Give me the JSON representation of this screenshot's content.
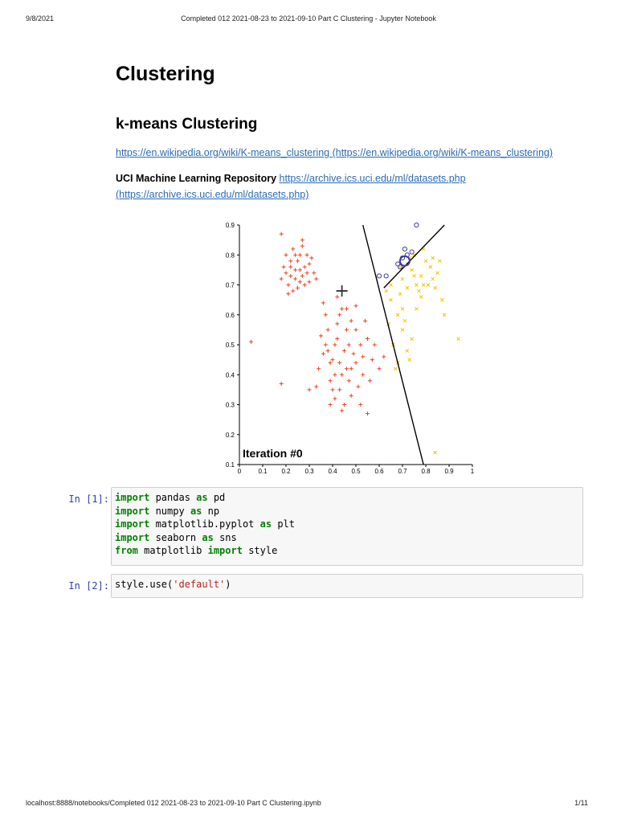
{
  "print_header": {
    "date": "9/8/2021",
    "title": "Completed 012 2021-08-23 to 2021-09-10 Part C Clustering - Jupyter Notebook"
  },
  "print_footer": {
    "url": "localhost:8888/notebooks/Completed 012 2021-08-23 to 2021-09-10 Part C Clustering.ipynb",
    "page": "1/11"
  },
  "markdown": {
    "title": "Clustering",
    "subtitle": "k-means Clustering",
    "wiki_link_text": "https://en.wikipedia.org/wiki/K-means_clustering",
    "wiki_link_paren": "(https://en.wikipedia.org/wiki/K-means_clustering)",
    "uci_label": "UCI Machine Learning Repository",
    "uci_link_text": "https://archive.ics.uci.edu/ml/datasets.php",
    "uci_link_paren": "(https://archive.ics.uci.edu/ml/datasets.php)"
  },
  "chart_data": {
    "type": "scatter",
    "annotation": "Iteration #0",
    "xlim": [
      0,
      1
    ],
    "ylim": [
      0.1,
      0.9
    ],
    "x_ticks": [
      "0",
      "0.1",
      "0.2",
      "0.3",
      "0.4",
      "0.5",
      "0.6",
      "0.7",
      "0.8",
      "0.9",
      "1"
    ],
    "y_ticks": [
      "0.1",
      "0.2",
      "0.3",
      "0.4",
      "0.5",
      "0.6",
      "0.7",
      "0.8",
      "0.9"
    ],
    "grid": false,
    "cluster_colors": {
      "orange": "#e8451f",
      "yellow": "#f2c400",
      "blue": "#3b3e9e"
    },
    "centroids": [
      {
        "cluster": "orange",
        "x": 0.44,
        "y": 0.68
      },
      {
        "cluster": "blue",
        "x": 0.71,
        "y": 0.78
      }
    ],
    "boundaries": [
      {
        "from": [
          0.53,
          0.9
        ],
        "to": [
          0.79,
          0.1
        ]
      },
      {
        "from": [
          0.62,
          0.69
        ],
        "to": [
          0.88,
          0.9
        ]
      }
    ],
    "series": [
      {
        "marker": "+",
        "color": "#e8451f",
        "points": [
          [
            0.2,
            0.74
          ],
          [
            0.22,
            0.78
          ],
          [
            0.24,
            0.72
          ],
          [
            0.26,
            0.8
          ],
          [
            0.28,
            0.76
          ],
          [
            0.25,
            0.69
          ],
          [
            0.21,
            0.7
          ],
          [
            0.23,
            0.82
          ],
          [
            0.27,
            0.73
          ],
          [
            0.3,
            0.77
          ],
          [
            0.19,
            0.76
          ],
          [
            0.24,
            0.75
          ],
          [
            0.26,
            0.71
          ],
          [
            0.22,
            0.73
          ],
          [
            0.29,
            0.8
          ],
          [
            0.32,
            0.74
          ],
          [
            0.2,
            0.8
          ],
          [
            0.25,
            0.78
          ],
          [
            0.28,
            0.7
          ],
          [
            0.23,
            0.68
          ],
          [
            0.18,
            0.72
          ],
          [
            0.31,
            0.79
          ],
          [
            0.27,
            0.83
          ],
          [
            0.21,
            0.67
          ],
          [
            0.33,
            0.72
          ],
          [
            0.26,
            0.75
          ],
          [
            0.24,
            0.8
          ],
          [
            0.29,
            0.74
          ],
          [
            0.22,
            0.76
          ],
          [
            0.3,
            0.71
          ],
          [
            0.18,
            0.87
          ],
          [
            0.27,
            0.85
          ],
          [
            0.05,
            0.51
          ],
          [
            0.18,
            0.37
          ],
          [
            0.4,
            0.45
          ],
          [
            0.42,
            0.52
          ],
          [
            0.45,
            0.48
          ],
          [
            0.38,
            0.55
          ],
          [
            0.48,
            0.58
          ],
          [
            0.44,
            0.62
          ],
          [
            0.41,
            0.4
          ],
          [
            0.36,
            0.47
          ],
          [
            0.5,
            0.44
          ],
          [
            0.47,
            0.38
          ],
          [
            0.43,
            0.35
          ],
          [
            0.39,
            0.3
          ],
          [
            0.52,
            0.5
          ],
          [
            0.46,
            0.55
          ],
          [
            0.34,
            0.42
          ],
          [
            0.42,
            0.66
          ],
          [
            0.37,
            0.6
          ],
          [
            0.5,
            0.63
          ],
          [
            0.55,
            0.52
          ],
          [
            0.53,
            0.4
          ],
          [
            0.48,
            0.33
          ],
          [
            0.44,
            0.28
          ],
          [
            0.41,
            0.5
          ],
          [
            0.46,
            0.42
          ],
          [
            0.39,
            0.38
          ],
          [
            0.49,
            0.47
          ],
          [
            0.35,
            0.53
          ],
          [
            0.43,
            0.44
          ],
          [
            0.51,
            0.36
          ],
          [
            0.45,
            0.3
          ],
          [
            0.38,
            0.48
          ],
          [
            0.57,
            0.45
          ],
          [
            0.54,
            0.58
          ],
          [
            0.4,
            0.35
          ],
          [
            0.47,
            0.5
          ],
          [
            0.42,
            0.57
          ],
          [
            0.36,
            0.64
          ],
          [
            0.44,
            0.4
          ],
          [
            0.5,
            0.55
          ],
          [
            0.33,
            0.36
          ],
          [
            0.46,
            0.62
          ],
          [
            0.52,
            0.3
          ],
          [
            0.39,
            0.44
          ],
          [
            0.56,
            0.38
          ],
          [
            0.48,
            0.42
          ],
          [
            0.41,
            0.32
          ],
          [
            0.6,
            0.42
          ],
          [
            0.58,
            0.5
          ],
          [
            0.62,
            0.46
          ],
          [
            0.3,
            0.35
          ],
          [
            0.55,
            0.27
          ],
          [
            0.43,
            0.6
          ],
          [
            0.37,
            0.5
          ],
          [
            0.53,
            0.46
          ]
        ]
      },
      {
        "marker": "x",
        "color": "#f2c400",
        "points": [
          [
            0.72,
            0.77
          ],
          [
            0.75,
            0.8
          ],
          [
            0.78,
            0.73
          ],
          [
            0.8,
            0.78
          ],
          [
            0.83,
            0.72
          ],
          [
            0.76,
            0.7
          ],
          [
            0.74,
            0.75
          ],
          [
            0.79,
            0.82
          ],
          [
            0.82,
            0.76
          ],
          [
            0.85,
            0.74
          ],
          [
            0.7,
            0.72
          ],
          [
            0.77,
            0.68
          ],
          [
            0.73,
            0.79
          ],
          [
            0.81,
            0.7
          ],
          [
            0.86,
            0.78
          ],
          [
            0.69,
            0.76
          ],
          [
            0.75,
            0.73
          ],
          [
            0.78,
            0.66
          ],
          [
            0.83,
            0.79
          ],
          [
            0.72,
            0.69
          ],
          [
            0.65,
            0.65
          ],
          [
            0.68,
            0.6
          ],
          [
            0.7,
            0.55
          ],
          [
            0.66,
            0.5
          ],
          [
            0.72,
            0.48
          ],
          [
            0.68,
            0.44
          ],
          [
            0.74,
            0.52
          ],
          [
            0.7,
            0.62
          ],
          [
            0.64,
            0.57
          ],
          [
            0.67,
            0.42
          ],
          [
            0.71,
            0.58
          ],
          [
            0.73,
            0.45
          ],
          [
            0.69,
            0.67
          ],
          [
            0.76,
            0.62
          ],
          [
            0.65,
            0.7
          ],
          [
            0.87,
            0.65
          ],
          [
            0.88,
            0.6
          ],
          [
            0.94,
            0.52
          ],
          [
            0.84,
            0.14
          ],
          [
            0.63,
            0.68
          ],
          [
            0.79,
            0.7
          ],
          [
            0.84,
            0.69
          ]
        ]
      },
      {
        "marker": "o",
        "color": "#3b3e9e",
        "points": [
          [
            0.76,
            0.9
          ],
          [
            0.6,
            0.73
          ],
          [
            0.63,
            0.73
          ],
          [
            0.68,
            0.77
          ],
          [
            0.7,
            0.79
          ],
          [
            0.72,
            0.8
          ],
          [
            0.74,
            0.81
          ],
          [
            0.69,
            0.76
          ],
          [
            0.71,
            0.82
          ]
        ]
      }
    ]
  },
  "cells": [
    {
      "prompt": "In [1]:",
      "lines": [
        [
          {
            "t": "kw",
            "v": "import"
          },
          {
            "t": "",
            "v": " pandas "
          },
          {
            "t": "kw",
            "v": "as"
          },
          {
            "t": "",
            "v": " pd"
          }
        ],
        [
          {
            "t": "kw",
            "v": "import"
          },
          {
            "t": "",
            "v": " numpy "
          },
          {
            "t": "kw",
            "v": "as"
          },
          {
            "t": "",
            "v": " np"
          }
        ],
        [
          {
            "t": "kw",
            "v": "import"
          },
          {
            "t": "",
            "v": " matplotlib.pyplot "
          },
          {
            "t": "kw",
            "v": "as"
          },
          {
            "t": "",
            "v": " plt"
          }
        ],
        [
          {
            "t": "kw",
            "v": "import"
          },
          {
            "t": "",
            "v": " seaborn "
          },
          {
            "t": "kw",
            "v": "as"
          },
          {
            "t": "",
            "v": " sns"
          }
        ],
        [
          {
            "t": "kw",
            "v": "from"
          },
          {
            "t": "",
            "v": " matplotlib "
          },
          {
            "t": "kw",
            "v": "import"
          },
          {
            "t": "",
            "v": " style"
          }
        ]
      ]
    },
    {
      "prompt": "In [2]:",
      "lines": [
        [
          {
            "t": "",
            "v": "style.use("
          },
          {
            "t": "str",
            "v": "'default'"
          },
          {
            "t": "",
            "v": ")"
          }
        ]
      ]
    }
  ]
}
